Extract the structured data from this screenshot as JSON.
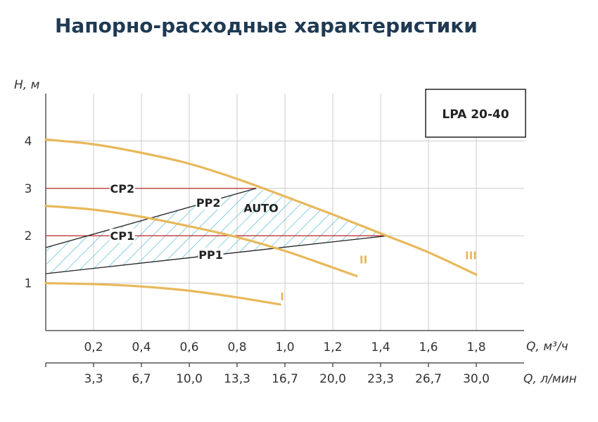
{
  "title": "Напорно-расходные характеристики",
  "colors": {
    "curve": "#e8b85a",
    "cp": "#c0393b",
    "pp": "#222222",
    "auto": "#3ab0d0",
    "grid": "#cccccc",
    "axis": "#555555"
  },
  "chart_data": {
    "type": "line",
    "model": "LPA 20-40",
    "ylabel": "H, м",
    "xlabel": "Q, м³/ч",
    "x2label": "Q, л/мин",
    "xlim": [
      0,
      2.0
    ],
    "ylim": [
      0,
      5
    ],
    "y_ticks": [
      1,
      2,
      3,
      4
    ],
    "x_ticks": [
      "0,2",
      "0,4",
      "0,6",
      "0,8",
      "1,0",
      "1,2",
      "1,4",
      "1,6",
      "1,8"
    ],
    "x2_ticks": [
      "3,3",
      "6,7",
      "10,0",
      "13,3",
      "16,7",
      "20,0",
      "23,3",
      "26,7",
      "30,0"
    ],
    "grid": true,
    "series": [
      {
        "name": "I",
        "x": [
          0,
          0.2,
          0.4,
          0.6,
          0.8,
          0.98
        ],
        "y": [
          1.0,
          0.98,
          0.93,
          0.84,
          0.7,
          0.55
        ]
      },
      {
        "name": "II",
        "x": [
          0,
          0.2,
          0.4,
          0.6,
          0.8,
          1.0,
          1.2,
          1.3
        ],
        "y": [
          2.63,
          2.55,
          2.4,
          2.2,
          1.97,
          1.68,
          1.33,
          1.15
        ]
      },
      {
        "name": "III",
        "x": [
          0,
          0.2,
          0.4,
          0.6,
          0.8,
          1.0,
          1.2,
          1.4,
          1.6,
          1.8
        ],
        "y": [
          4.03,
          3.93,
          3.75,
          3.52,
          3.2,
          2.83,
          2.45,
          2.05,
          1.65,
          1.18
        ]
      }
    ],
    "control_lines": [
      {
        "name": "CP2",
        "x": [
          0,
          0.88
        ],
        "y": [
          3.0,
          3.0
        ]
      },
      {
        "name": "CP1",
        "x": [
          0,
          1.43
        ],
        "y": [
          2.0,
          2.0
        ]
      },
      {
        "name": "PP2",
        "x": [
          0,
          0.88
        ],
        "y": [
          1.75,
          3.0
        ]
      },
      {
        "name": "PP1",
        "x": [
          0,
          1.43
        ],
        "y": [
          1.2,
          2.0
        ]
      }
    ],
    "auto_region": {
      "name": "AUTO",
      "x": [
        0,
        0.88,
        1.0,
        1.2,
        1.43,
        0
      ],
      "y": [
        1.75,
        3.0,
        2.83,
        2.45,
        2.0,
        1.2
      ]
    }
  }
}
